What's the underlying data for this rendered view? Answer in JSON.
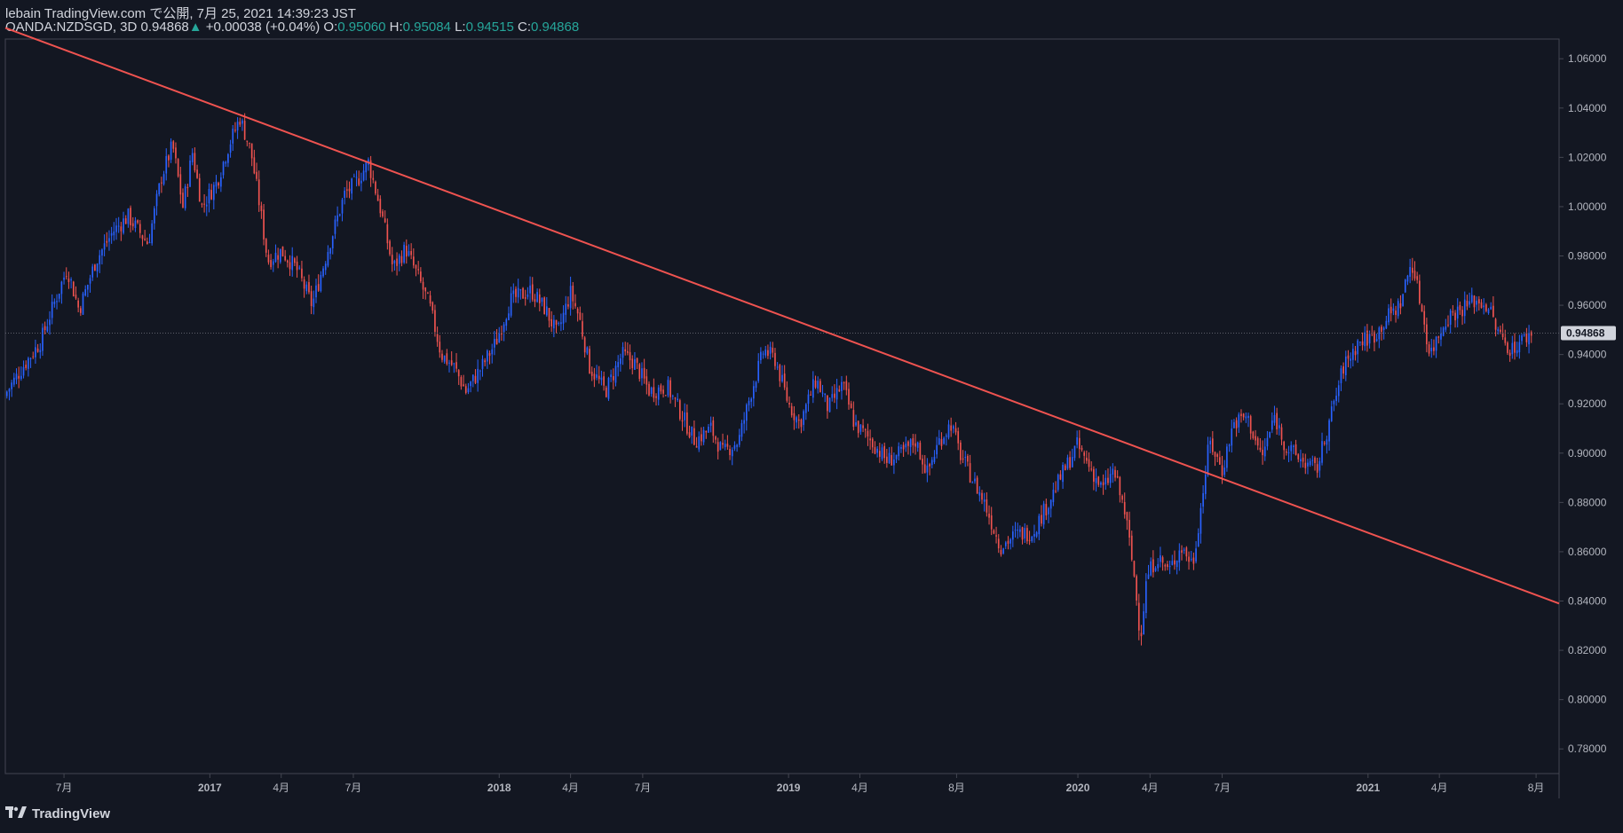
{
  "header": {
    "publish_line": "lebain TradingView.com で公開, 7月 25, 2021 14:39:23 JST",
    "symbol": "OANDA:NZDSGD, 3D",
    "last": "0.94868",
    "arrow": "▲",
    "change": "+0.00038 (+0.04%)",
    "o_label": "O:",
    "o_value": "0.95060",
    "h_label": "H:",
    "h_value": "0.95084",
    "l_label": "L:",
    "l_value": "0.94515",
    "c_label": "C:",
    "c_value": "0.94868"
  },
  "footer": {
    "brand": "TradingView",
    "logo": "tradingview-logo-icon"
  },
  "colors": {
    "background": "#131722",
    "up": "#2962ff",
    "down": "#ef5350",
    "trendline": "#ef5350",
    "axis_text": "#b2b5be",
    "price_label_bg": "#d1d4dc"
  },
  "chart_data": {
    "type": "candlestick",
    "symbol": "OANDA:NZDSGD",
    "interval": "3D",
    "ylim": [
      0.77,
      1.068
    ],
    "yticks": [
      1.06,
      1.04,
      1.02,
      1.0,
      0.98,
      0.96,
      0.94,
      0.92,
      0.9,
      0.88,
      0.86,
      0.84,
      0.82,
      0.8,
      0.78
    ],
    "ytick_labels": [
      "1.06000",
      "1.04000",
      "1.02000",
      "1.00000",
      "0.98000",
      "0.96000",
      "0.94000",
      "0.92000",
      "0.90000",
      "0.88000",
      "0.86000",
      "0.84000",
      "0.82000",
      "0.80000",
      "0.78000"
    ],
    "xlim": [
      "2016-04-18",
      "2021-08-30"
    ],
    "xticks": [
      {
        "date": "2016-07-01",
        "label": "7月"
      },
      {
        "date": "2017-01-01",
        "label": "2017"
      },
      {
        "date": "2017-04-01",
        "label": "4月"
      },
      {
        "date": "2017-07-01",
        "label": "7月"
      },
      {
        "date": "2018-01-01",
        "label": "2018"
      },
      {
        "date": "2018-04-01",
        "label": "4月"
      },
      {
        "date": "2018-07-01",
        "label": "7月"
      },
      {
        "date": "2019-01-01",
        "label": "2019"
      },
      {
        "date": "2019-04-01",
        "label": "4月"
      },
      {
        "date": "2019-08-01",
        "label": "8月"
      },
      {
        "date": "2020-01-01",
        "label": "2020"
      },
      {
        "date": "2020-04-01",
        "label": "4月"
      },
      {
        "date": "2020-07-01",
        "label": "7月"
      },
      {
        "date": "2021-01-01",
        "label": "2021"
      },
      {
        "date": "2021-04-01",
        "label": "4月"
      },
      {
        "date": "2021-08-01",
        "label": "8月"
      }
    ],
    "last_price": 0.94868,
    "last_price_label": "0.94868",
    "trendline": {
      "x": [
        "2016-04-18",
        "2021-08-30"
      ],
      "y": [
        1.0725,
        0.839
      ]
    },
    "close_path": [
      [
        "2016-04-20",
        0.925
      ],
      [
        "2016-05-10",
        0.935
      ],
      [
        "2016-06-01",
        0.945
      ],
      [
        "2016-06-20",
        0.962
      ],
      [
        "2016-07-05",
        0.975
      ],
      [
        "2016-07-20",
        0.958
      ],
      [
        "2016-08-10",
        0.978
      ],
      [
        "2016-09-01",
        0.99
      ],
      [
        "2016-09-20",
        0.996
      ],
      [
        "2016-10-15",
        0.985
      ],
      [
        "2016-11-01",
        1.012
      ],
      [
        "2016-11-15",
        1.025
      ],
      [
        "2016-11-28",
        1.0
      ],
      [
        "2016-12-10",
        1.022
      ],
      [
        "2016-12-22",
        1.0
      ],
      [
        "2017-01-10",
        1.01
      ],
      [
        "2017-01-25",
        1.025
      ],
      [
        "2017-02-08",
        1.036
      ],
      [
        "2017-02-22",
        1.022
      ],
      [
        "2017-03-05",
        1.0
      ],
      [
        "2017-03-15",
        0.978
      ],
      [
        "2017-04-01",
        0.982
      ],
      [
        "2017-04-20",
        0.975
      ],
      [
        "2017-05-10",
        0.96
      ],
      [
        "2017-06-01",
        0.985
      ],
      [
        "2017-06-20",
        1.005
      ],
      [
        "2017-07-05",
        1.01
      ],
      [
        "2017-07-20",
        1.018
      ],
      [
        "2017-08-05",
        0.998
      ],
      [
        "2017-08-20",
        0.975
      ],
      [
        "2017-09-05",
        0.983
      ],
      [
        "2017-09-20",
        0.972
      ],
      [
        "2017-10-05",
        0.96
      ],
      [
        "2017-10-20",
        0.94
      ],
      [
        "2017-11-05",
        0.935
      ],
      [
        "2017-11-20",
        0.925
      ],
      [
        "2017-12-10",
        0.935
      ],
      [
        "2017-12-28",
        0.945
      ],
      [
        "2018-01-15",
        0.962
      ],
      [
        "2018-02-10",
        0.966
      ],
      [
        "2018-03-01",
        0.958
      ],
      [
        "2018-03-15",
        0.948
      ],
      [
        "2018-04-01",
        0.965
      ],
      [
        "2018-04-12",
        0.955
      ],
      [
        "2018-04-25",
        0.935
      ],
      [
        "2018-05-15",
        0.925
      ],
      [
        "2018-06-05",
        0.94
      ],
      [
        "2018-06-20",
        0.937
      ],
      [
        "2018-07-10",
        0.925
      ],
      [
        "2018-08-01",
        0.927
      ],
      [
        "2018-08-20",
        0.915
      ],
      [
        "2018-09-05",
        0.905
      ],
      [
        "2018-09-25",
        0.91
      ],
      [
        "2018-10-10",
        0.9
      ],
      [
        "2018-10-30",
        0.905
      ],
      [
        "2018-11-15",
        0.925
      ],
      [
        "2018-12-01",
        0.942
      ],
      [
        "2018-12-15",
        0.938
      ],
      [
        "2019-01-01",
        0.92
      ],
      [
        "2019-01-15",
        0.912
      ],
      [
        "2019-02-05",
        0.93
      ],
      [
        "2019-02-20",
        0.918
      ],
      [
        "2019-03-10",
        0.928
      ],
      [
        "2019-03-25",
        0.912
      ],
      [
        "2019-04-15",
        0.905
      ],
      [
        "2019-05-05",
        0.897
      ],
      [
        "2019-05-25",
        0.9
      ],
      [
        "2019-06-10",
        0.905
      ],
      [
        "2019-06-25",
        0.892
      ],
      [
        "2019-07-10",
        0.905
      ],
      [
        "2019-07-25",
        0.912
      ],
      [
        "2019-08-05",
        0.9
      ],
      [
        "2019-08-20",
        0.89
      ],
      [
        "2019-09-05",
        0.88
      ],
      [
        "2019-09-25",
        0.862
      ],
      [
        "2019-10-15",
        0.867
      ],
      [
        "2019-11-05",
        0.868
      ],
      [
        "2019-11-25",
        0.88
      ],
      [
        "2019-12-10",
        0.89
      ],
      [
        "2019-12-31",
        0.903
      ],
      [
        "2020-01-15",
        0.895
      ],
      [
        "2020-02-01",
        0.885
      ],
      [
        "2020-02-15",
        0.893
      ],
      [
        "2020-03-01",
        0.875
      ],
      [
        "2020-03-12",
        0.85
      ],
      [
        "2020-03-20",
        0.825
      ],
      [
        "2020-03-28",
        0.85
      ],
      [
        "2020-04-10",
        0.858
      ],
      [
        "2020-04-25",
        0.852
      ],
      [
        "2020-05-10",
        0.862
      ],
      [
        "2020-05-25",
        0.855
      ],
      [
        "2020-06-05",
        0.88
      ],
      [
        "2020-06-15",
        0.905
      ],
      [
        "2020-07-01",
        0.893
      ],
      [
        "2020-07-15",
        0.912
      ],
      [
        "2020-08-01",
        0.915
      ],
      [
        "2020-08-20",
        0.898
      ],
      [
        "2020-09-05",
        0.915
      ],
      [
        "2020-09-20",
        0.902
      ],
      [
        "2020-10-10",
        0.897
      ],
      [
        "2020-10-28",
        0.893
      ],
      [
        "2020-11-15",
        0.915
      ],
      [
        "2020-12-01",
        0.935
      ],
      [
        "2020-12-20",
        0.945
      ],
      [
        "2021-01-10",
        0.948
      ],
      [
        "2021-01-25",
        0.955
      ],
      [
        "2021-02-10",
        0.96
      ],
      [
        "2021-02-25",
        0.978
      ],
      [
        "2021-03-10",
        0.958
      ],
      [
        "2021-03-20",
        0.94
      ],
      [
        "2021-04-10",
        0.955
      ],
      [
        "2021-04-25",
        0.958
      ],
      [
        "2021-05-15",
        0.962
      ],
      [
        "2021-06-01",
        0.96
      ],
      [
        "2021-06-15",
        0.948
      ],
      [
        "2021-07-01",
        0.942
      ],
      [
        "2021-07-15",
        0.946
      ],
      [
        "2021-07-26",
        0.94868
      ]
    ]
  }
}
